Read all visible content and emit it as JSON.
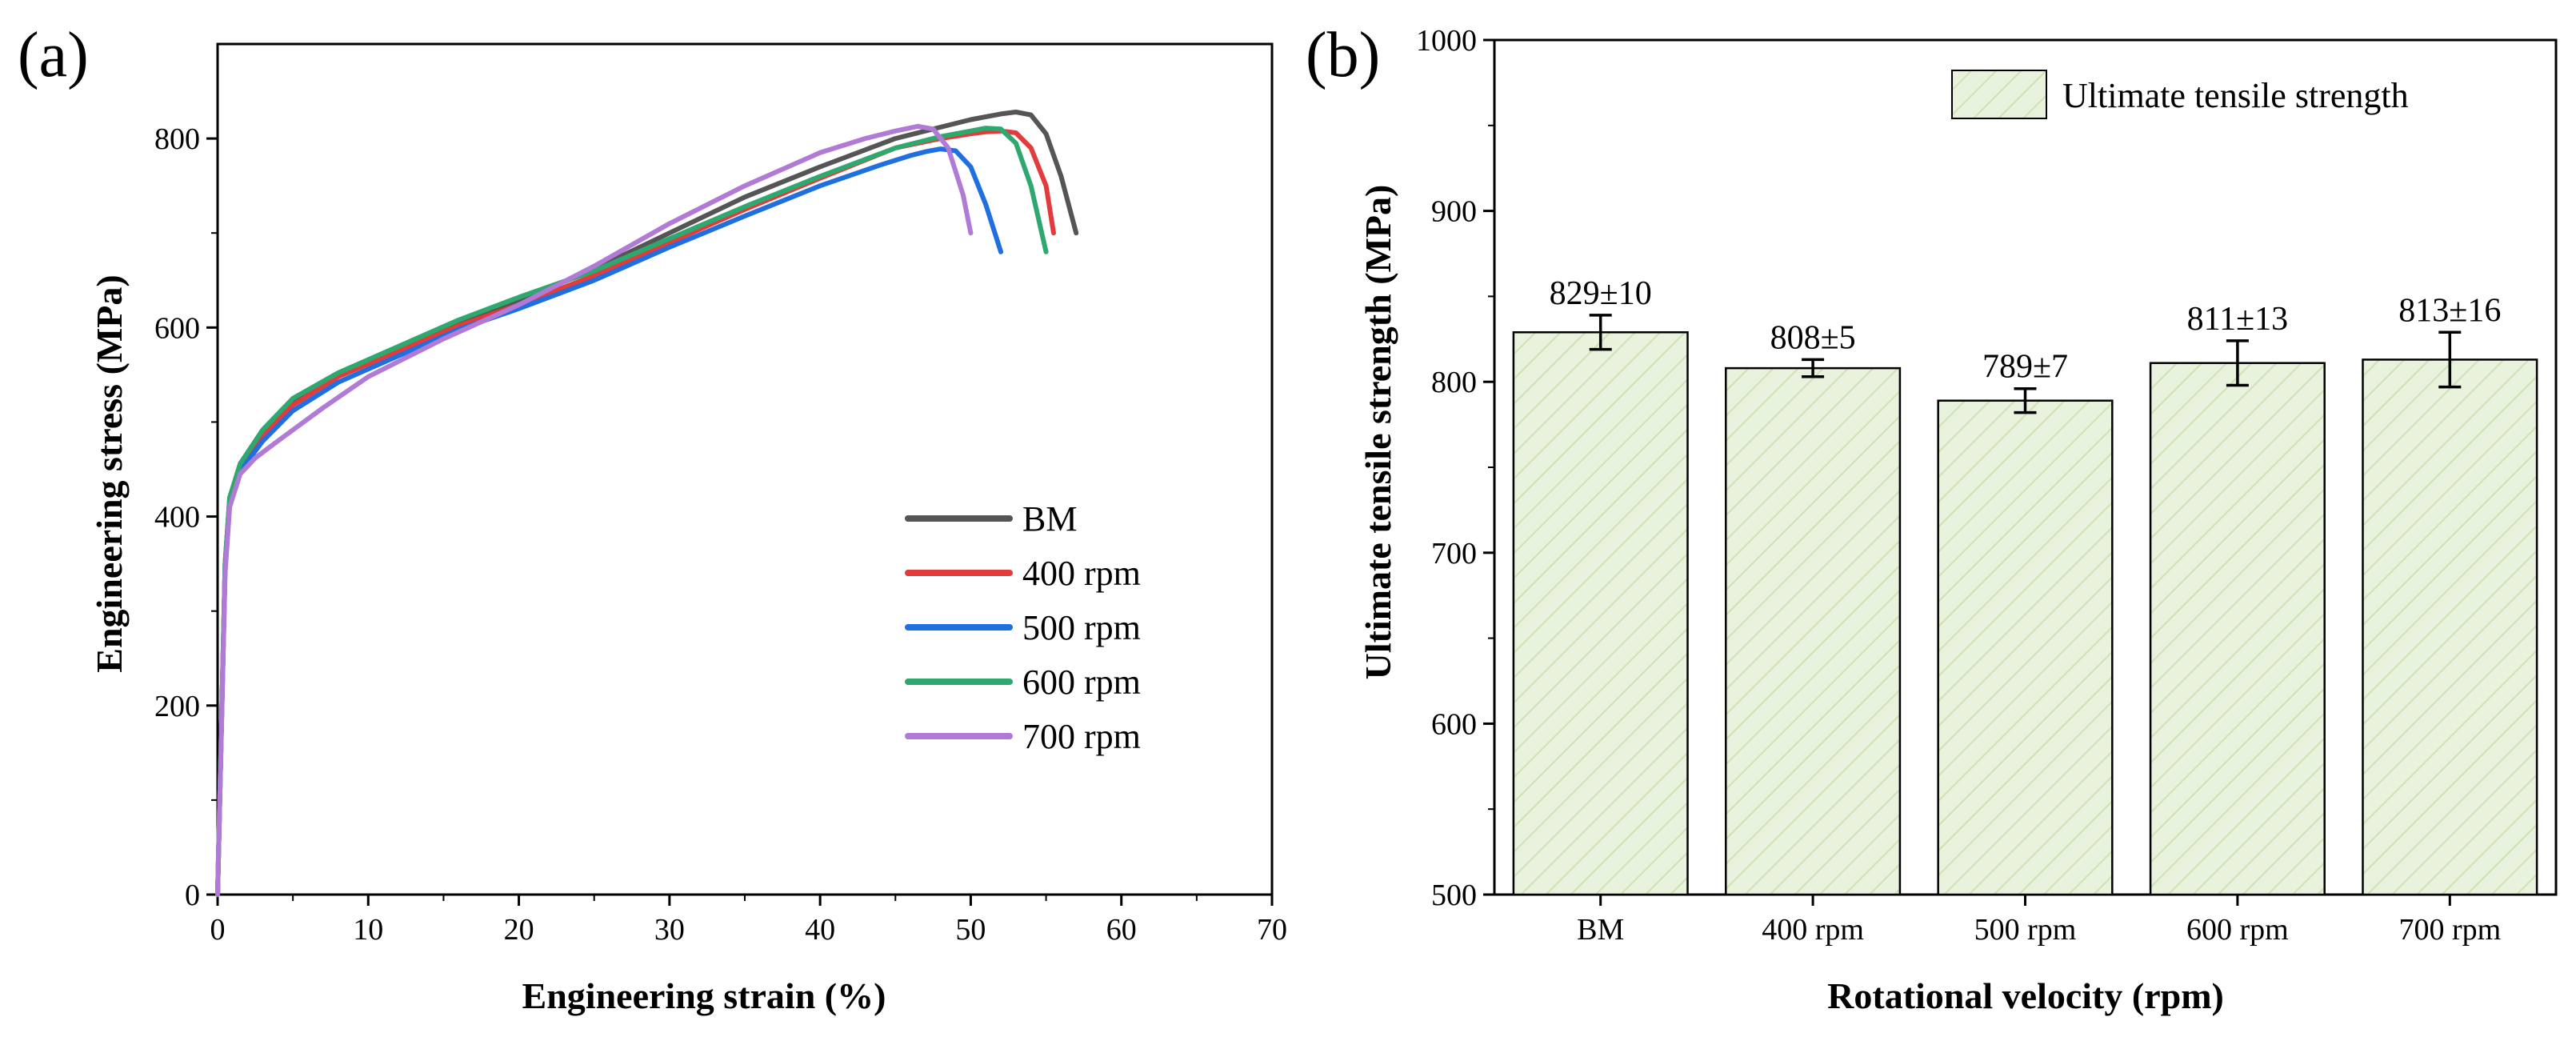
{
  "panels": {
    "a": {
      "label": "(a)"
    },
    "b": {
      "label": "(b)"
    }
  },
  "colors": {
    "BM": "#555555",
    "400 rpm": "#e23b3b",
    "500 rpm": "#1f6fe0",
    "600 rpm": "#2fa870",
    "700 rpm": "#b07ad6",
    "bar_fill": "#e9f2dc",
    "bar_hatch": "#cfe1b5"
  },
  "chart_data": [
    {
      "type": "line",
      "panel": "a",
      "title": "",
      "xlabel": "Engineering strain (%)",
      "ylabel": "Engineering stress (MPa)",
      "xlim": [
        0,
        70
      ],
      "ylim": [
        0,
        900
      ],
      "xticks": [
        0,
        10,
        20,
        30,
        40,
        50,
        60,
        70
      ],
      "yticks": [
        0,
        200,
        400,
        600,
        800
      ],
      "grid": false,
      "legend_position": "center-right",
      "series": [
        {
          "name": "BM",
          "x": [
            0,
            0.5,
            0.8,
            1.5,
            3,
            5,
            8,
            12,
            16,
            20,
            25,
            30,
            35,
            40,
            45,
            48,
            50,
            52,
            53,
            54,
            55,
            56,
            57
          ],
          "y": [
            0,
            350,
            420,
            455,
            490,
            520,
            550,
            578,
            605,
            628,
            662,
            700,
            738,
            770,
            800,
            812,
            820,
            826,
            828,
            825,
            805,
            760,
            700
          ]
        },
        {
          "name": "400 rpm",
          "x": [
            0,
            0.5,
            0.8,
            1.5,
            3,
            5,
            8,
            12,
            16,
            20,
            25,
            30,
            35,
            40,
            45,
            48,
            50,
            51,
            52,
            53,
            54,
            55,
            55.5
          ],
          "y": [
            0,
            350,
            418,
            452,
            487,
            518,
            548,
            575,
            602,
            624,
            655,
            690,
            725,
            758,
            790,
            800,
            805,
            807,
            808,
            806,
            790,
            750,
            700
          ]
        },
        {
          "name": "500 rpm",
          "x": [
            0,
            0.5,
            0.8,
            1.5,
            3,
            5,
            8,
            12,
            16,
            20,
            25,
            30,
            35,
            40,
            44,
            46,
            47,
            48,
            49,
            50,
            51,
            52
          ],
          "y": [
            0,
            345,
            415,
            448,
            480,
            512,
            542,
            570,
            598,
            620,
            650,
            685,
            718,
            750,
            772,
            782,
            786,
            789,
            787,
            770,
            730,
            680
          ]
        },
        {
          "name": "600 rpm",
          "x": [
            0,
            0.5,
            0.8,
            1.5,
            3,
            5,
            8,
            12,
            16,
            20,
            25,
            30,
            35,
            40,
            45,
            48,
            50,
            51,
            52,
            53,
            54,
            55
          ],
          "y": [
            0,
            350,
            420,
            456,
            492,
            525,
            552,
            580,
            608,
            632,
            660,
            694,
            728,
            760,
            790,
            802,
            808,
            811,
            810,
            795,
            750,
            680
          ]
        },
        {
          "name": "700 rpm",
          "x": [
            0,
            0.5,
            0.8,
            1.5,
            2.5,
            4,
            7,
            10,
            15,
            20,
            25,
            30,
            35,
            40,
            43,
            45,
            46.5,
            47.5,
            48.5,
            49.5,
            50
          ],
          "y": [
            0,
            340,
            410,
            445,
            462,
            480,
            515,
            548,
            588,
            624,
            665,
            710,
            750,
            785,
            800,
            808,
            813,
            810,
            790,
            740,
            700
          ]
        }
      ]
    },
    {
      "type": "bar",
      "panel": "b",
      "title": "",
      "xlabel": "Rotational velocity (rpm)",
      "ylabel": "Ultimate tensile strength (MPa)",
      "ylim": [
        500,
        1000
      ],
      "yticks": [
        500,
        600,
        700,
        800,
        900,
        1000
      ],
      "grid": false,
      "legend_position": "top-right",
      "categories": [
        "BM",
        "400 rpm",
        "500 rpm",
        "600 rpm",
        "700 rpm"
      ],
      "series": [
        {
          "name": "Ultimate tensile strength",
          "values": [
            829,
            808,
            789,
            811,
            813
          ],
          "errors": [
            10,
            5,
            7,
            13,
            16
          ]
        }
      ],
      "data_labels": [
        "829±10",
        "808±5",
        "789±7",
        "811±13",
        "813±16"
      ]
    }
  ]
}
